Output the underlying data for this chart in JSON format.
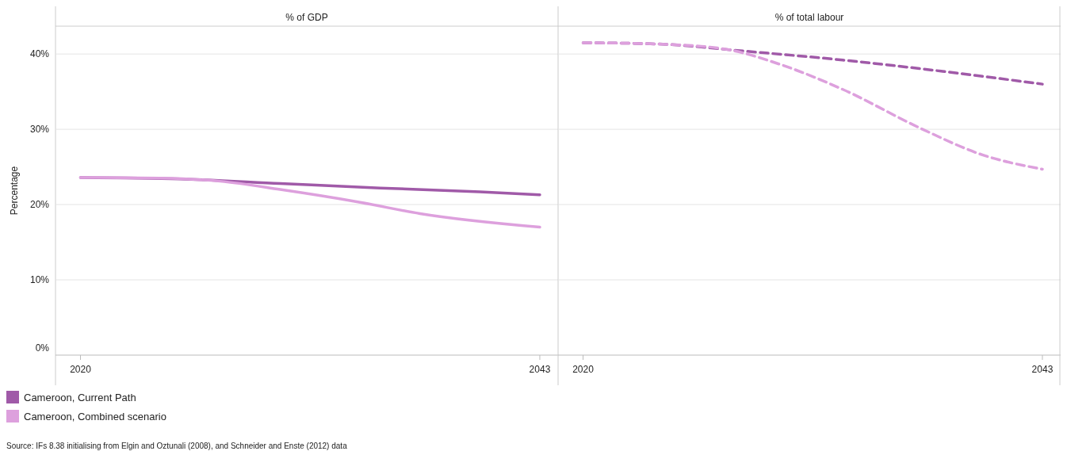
{
  "chart_data": [
    {
      "type": "line",
      "title": "% of GDP",
      "ylabel": "Percentage",
      "x": [
        "2020",
        "2025",
        "2030",
        "2035",
        "2040",
        "2043"
      ],
      "xlim": [
        "2018-10",
        "2043-12"
      ],
      "xticks": [
        "2020",
        "2043"
      ],
      "ylim": [
        0,
        43.7
      ],
      "yticks": [
        {
          "value": 0,
          "label": "0%"
        },
        {
          "value": 10,
          "label": "10%"
        },
        {
          "value": 20,
          "label": "20%"
        },
        {
          "value": 30,
          "label": "30%"
        },
        {
          "value": 40,
          "label": "40%"
        }
      ],
      "grid": "y",
      "legend": "bottom",
      "line_style": "solid",
      "series": [
        {
          "name": "Cameroon, Current Path",
          "color": "#a05aa8",
          "values": [
            23.6,
            23.4,
            22.8,
            22.2,
            21.7,
            21.3
          ]
        },
        {
          "name": "Cameroon, Combined scenario",
          "color": "#dda0dd",
          "x": [
            "2020",
            "2024",
            "2027",
            "2030",
            "2034",
            "2037",
            "2043"
          ],
          "values": [
            23.6,
            23.5,
            23.1,
            22.0,
            20.3,
            18.8,
            17.0
          ]
        }
      ],
      "annotations": [
        "Source: IFs 8.38 initialising from Elgin and Oztunali (2008), and Schneider and Enste (2012) data"
      ]
    },
    {
      "type": "line",
      "title": "% of total labour",
      "x": [
        "2020",
        "2024",
        "2028",
        "2033",
        "2038",
        "2043"
      ],
      "xlim": [
        "2018-10",
        "2043-12"
      ],
      "xticks": [
        "2020",
        "2043"
      ],
      "ylim": [
        0,
        43.7
      ],
      "yticks": [
        0,
        10,
        20,
        30,
        40
      ],
      "grid": "y",
      "tick_labels": "x",
      "line_style": "dashed",
      "series": [
        {
          "color": "#a05aa8",
          "values": [
            41.5,
            41.3,
            40.4,
            39.2,
            37.7,
            36.0
          ]
        },
        {
          "color": "#dda0dd",
          "x": [
            "2020",
            "2024",
            "2027",
            "2030",
            "2033",
            "2037",
            "2040",
            "2043"
          ],
          "values": [
            41.5,
            41.3,
            40.7,
            38.5,
            35.3,
            30.0,
            26.6,
            24.7
          ]
        }
      ]
    }
  ]
}
